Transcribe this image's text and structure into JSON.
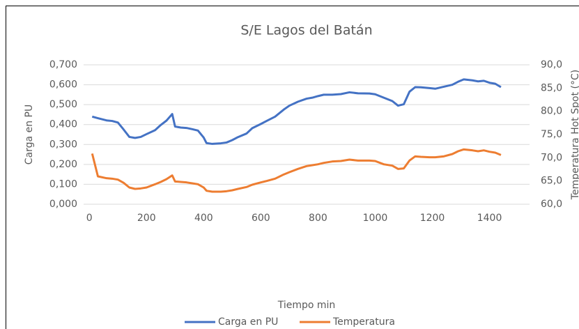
{
  "chart_data": {
    "type": "line",
    "title": "S/E Lagos del Batán",
    "x_label": "Tiempo min",
    "y_label": "Carga en PU",
    "y2_label": "Temperatura Hot Spot (°C)",
    "x": [
      10,
      30,
      60,
      80,
      100,
      120,
      140,
      160,
      180,
      200,
      230,
      250,
      270,
      290,
      300,
      320,
      340,
      360,
      380,
      400,
      410,
      430,
      460,
      480,
      500,
      520,
      550,
      570,
      600,
      620,
      650,
      680,
      700,
      730,
      760,
      780,
      800,
      820,
      850,
      880,
      910,
      940,
      980,
      1000,
      1030,
      1060,
      1080,
      1100,
      1120,
      1140,
      1160,
      1190,
      1210,
      1240,
      1270,
      1290,
      1310,
      1340,
      1360,
      1380,
      1400,
      1420,
      1440
    ],
    "series": [
      {
        "name": "Carga en PU",
        "color": "#4472c4",
        "axis": "y",
        "values": [
          0.44,
          0.432,
          0.421,
          0.418,
          0.41,
          0.375,
          0.338,
          0.333,
          0.338,
          0.352,
          0.372,
          0.398,
          0.42,
          0.453,
          0.39,
          0.385,
          0.383,
          0.377,
          0.37,
          0.335,
          0.307,
          0.303,
          0.306,
          0.31,
          0.322,
          0.337,
          0.355,
          0.382,
          0.403,
          0.418,
          0.44,
          0.475,
          0.495,
          0.515,
          0.53,
          0.535,
          0.543,
          0.55,
          0.55,
          0.553,
          0.562,
          0.557,
          0.556,
          0.552,
          0.535,
          0.518,
          0.495,
          0.502,
          0.565,
          0.588,
          0.587,
          0.583,
          0.58,
          0.59,
          0.6,
          0.615,
          0.627,
          0.622,
          0.617,
          0.62,
          0.61,
          0.605,
          0.588
        ]
      },
      {
        "name": "Temperatura",
        "color": "#ed7d31",
        "axis": "y2",
        "values": [
          70.9,
          66.0,
          65.6,
          65.5,
          65.3,
          64.6,
          63.6,
          63.3,
          63.4,
          63.6,
          64.3,
          64.8,
          65.4,
          66.2,
          64.9,
          64.8,
          64.7,
          64.5,
          64.3,
          63.6,
          62.9,
          62.7,
          62.7,
          62.8,
          63.0,
          63.3,
          63.7,
          64.2,
          64.7,
          65.0,
          65.5,
          66.4,
          66.9,
          67.6,
          68.2,
          68.4,
          68.6,
          68.9,
          69.2,
          69.3,
          69.6,
          69.4,
          69.4,
          69.3,
          68.6,
          68.3,
          67.6,
          67.7,
          69.4,
          70.3,
          70.2,
          70.1,
          70.1,
          70.3,
          70.8,
          71.4,
          71.8,
          71.6,
          71.4,
          71.6,
          71.3,
          71.1,
          70.6
        ]
      }
    ],
    "xlim": [
      -20,
      1540
    ],
    "xticks": [
      0,
      200,
      400,
      600,
      800,
      1000,
      1200,
      1400
    ],
    "ylim": [
      0,
      0.7
    ],
    "yticks": [
      {
        "value": 0,
        "label": "0,000"
      },
      {
        "value": 0.1,
        "label": "0,100"
      },
      {
        "value": 0.2,
        "label": "0,200"
      },
      {
        "value": 0.3,
        "label": "0,300"
      },
      {
        "value": 0.4,
        "label": "0,400"
      },
      {
        "value": 0.5,
        "label": "0,500"
      },
      {
        "value": 0.6,
        "label": "0,600"
      },
      {
        "value": 0.7,
        "label": "0,700"
      }
    ],
    "y2lim": [
      60,
      90
    ],
    "y2ticks": [
      {
        "value": 60,
        "label": "60,0"
      },
      {
        "value": 65,
        "label": "65,0"
      },
      {
        "value": 70,
        "label": "70,0"
      },
      {
        "value": 75,
        "label": "75,0"
      },
      {
        "value": 80,
        "label": "80,0"
      },
      {
        "value": 85,
        "label": "85,0"
      },
      {
        "value": 90,
        "label": "90,0"
      }
    ],
    "grid": true,
    "legend": "bottom"
  }
}
